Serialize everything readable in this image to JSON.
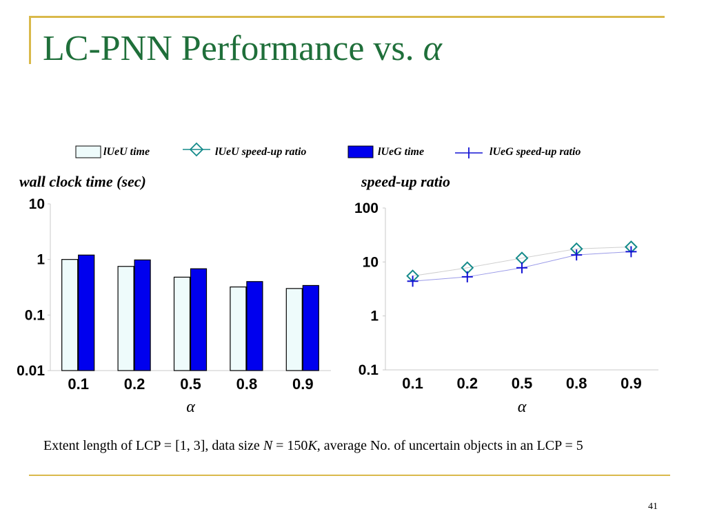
{
  "title": {
    "text": "LC-PNN Performance vs.",
    "symbol": "α"
  },
  "caption": {
    "part1": "Extent length of LCP = [1, 3], data size ",
    "var_n": "N",
    "part2": " = 150",
    "var_k": "K",
    "part3": ",  average No. of uncertain objects in an LCP = 5"
  },
  "page_number": "41",
  "colors": {
    "title": "#1f6f3a",
    "frame": "#d9b94a",
    "ueu_bar": "#eefbfb",
    "ueg_bar": "#0000ee",
    "ueu_line": "#138a8a",
    "ueg_line": "#1212d4"
  },
  "legend": [
    {
      "label": "lUeU time",
      "marker": "bar-light"
    },
    {
      "label": "lUeU speed-up ratio",
      "marker": "diamond-line"
    },
    {
      "label": "lUeG time",
      "marker": "bar-blue"
    },
    {
      "label": "lUeG speed-up ratio",
      "marker": "plus-line"
    }
  ],
  "chart_data": [
    {
      "type": "bar",
      "ylabel": "wall clock time (sec)",
      "xlabel": "α",
      "yscale": "log",
      "ylim": [
        0.01,
        10
      ],
      "yticks": [
        "10",
        "1",
        "0.1",
        "0.01"
      ],
      "categories": [
        "0.1",
        "0.2",
        "0.5",
        "0.8",
        "0.9"
      ],
      "series": [
        {
          "name": "lUeU time",
          "values": [
            1.0,
            0.75,
            0.48,
            0.32,
            0.3
          ]
        },
        {
          "name": "lUeG time",
          "values": [
            1.2,
            0.98,
            0.68,
            0.4,
            0.34
          ]
        }
      ],
      "grid": false
    },
    {
      "type": "line",
      "ylabel": "speed-up ratio",
      "xlabel": "α",
      "yscale": "log",
      "ylim": [
        0.1,
        100
      ],
      "yticks": [
        "100",
        "10",
        "1",
        "0.1"
      ],
      "categories": [
        "0.1",
        "0.2",
        "0.5",
        "0.8",
        "0.9"
      ],
      "series": [
        {
          "name": "lUeU speed-up ratio",
          "values": [
            5.5,
            7.8,
            11.8,
            17.5,
            19.0
          ]
        },
        {
          "name": "lUeG speed-up ratio",
          "values": [
            4.4,
            5.3,
            7.8,
            13.5,
            15.5
          ]
        }
      ],
      "grid": false
    }
  ]
}
